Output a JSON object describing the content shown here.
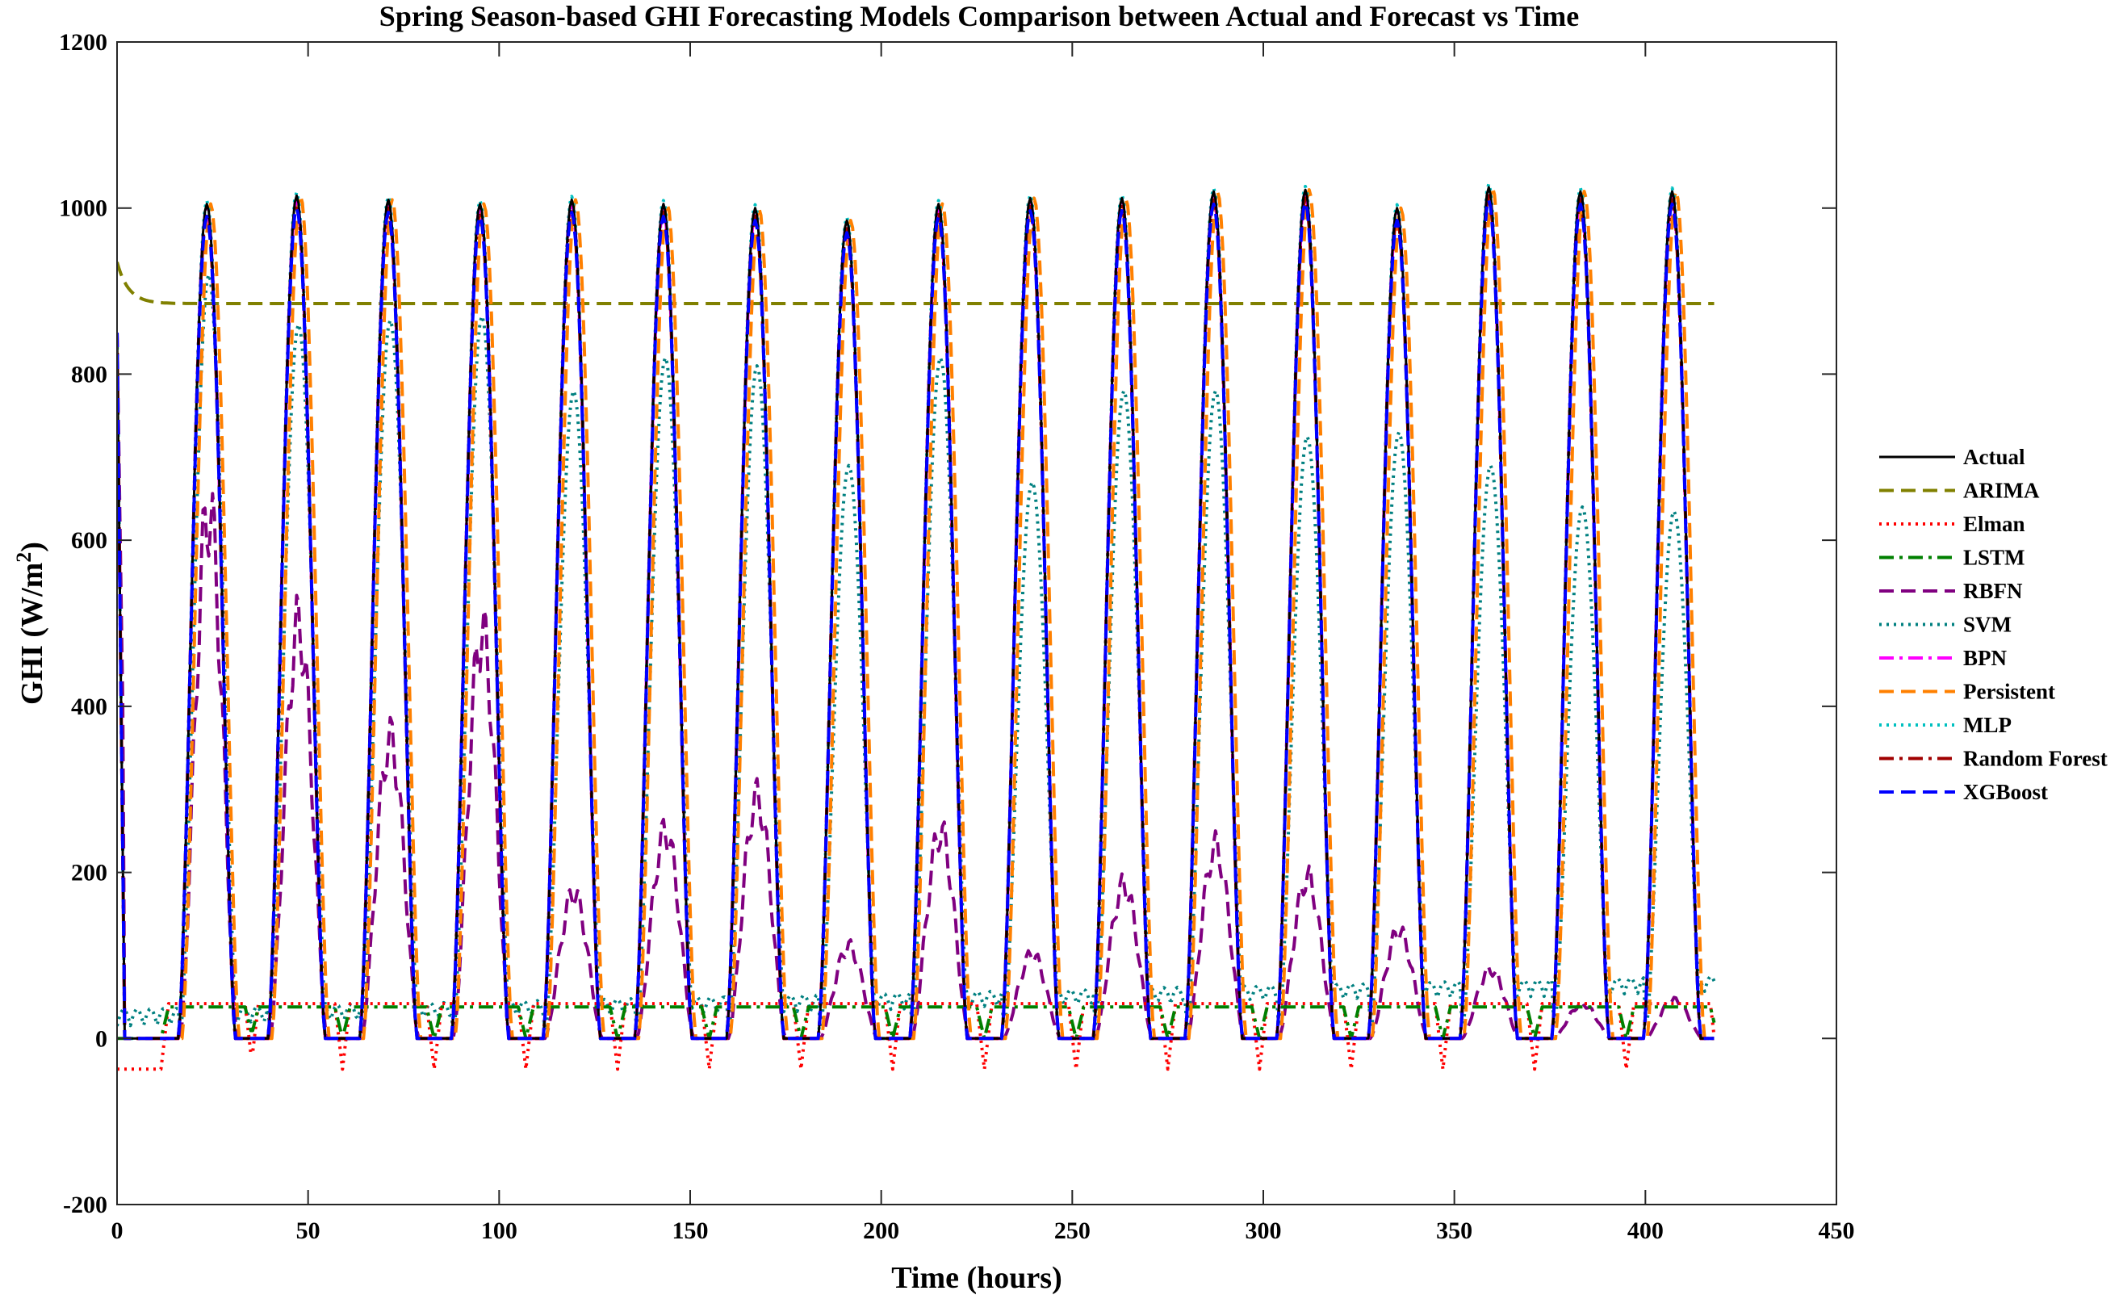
{
  "chart_data": {
    "type": "line",
    "title": "Spring Season-based GHI Forecasting Models Comparison between Actual and Forecast vs Time",
    "xlabel": "Time (hours)",
    "ylabel": "GHI (W/m²)",
    "ylabel_main": "GHI (W/m",
    "ylabel_sup": "2",
    "ylabel_close": ")",
    "xlim": [
      0,
      450
    ],
    "ylim": [
      -200,
      1200
    ],
    "xticks": [
      "0",
      "50",
      "100",
      "150",
      "200",
      "250",
      "300",
      "350",
      "400",
      "450"
    ],
    "yticks": [
      "-200",
      "0",
      "200",
      "400",
      "600",
      "800",
      "1000",
      "1200"
    ],
    "grid": false,
    "legend_position": "right",
    "x_end": 418,
    "days": [
      {
        "center": 23.5,
        "peak": 1005,
        "rbfn": 690,
        "svm": 920
      },
      {
        "center": 47,
        "peak": 1015,
        "rbfn": 540,
        "svm": 860
      },
      {
        "center": 71,
        "peak": 1010,
        "rbfn": 390,
        "svm": 865
      },
      {
        "center": 95,
        "peak": 1005,
        "rbfn": 530,
        "svm": 870
      },
      {
        "center": 119,
        "peak": 1010,
        "rbfn": 190,
        "svm": 780
      },
      {
        "center": 143,
        "peak": 1005,
        "rbfn": 270,
        "svm": 820
      },
      {
        "center": 167,
        "peak": 1000,
        "rbfn": 315,
        "svm": 810
      },
      {
        "center": 191,
        "peak": 985,
        "rbfn": 120,
        "svm": 690
      },
      {
        "center": 215,
        "peak": 1005,
        "rbfn": 270,
        "svm": 820
      },
      {
        "center": 239,
        "peak": 1012,
        "rbfn": 110,
        "svm": 670
      },
      {
        "center": 263,
        "peak": 1012,
        "rbfn": 200,
        "svm": 780
      },
      {
        "center": 287,
        "peak": 1020,
        "rbfn": 250,
        "svm": 780
      },
      {
        "center": 311,
        "peak": 1022,
        "rbfn": 210,
        "svm": 725
      },
      {
        "center": 335,
        "peak": 1000,
        "rbfn": 140,
        "svm": 730
      },
      {
        "center": 359,
        "peak": 1025,
        "rbfn": 90,
        "svm": 690
      },
      {
        "center": 383,
        "peak": 1020,
        "rbfn": 45,
        "svm": 640
      },
      {
        "center": 407,
        "peak": 1020,
        "rbfn": 50,
        "svm": 635
      }
    ],
    "series": [
      {
        "name": "Actual",
        "color": "#000000",
        "style": "solid"
      },
      {
        "name": "ARIMA",
        "color": "#808000",
        "style": "dashed",
        "start": 935,
        "level": 885
      },
      {
        "name": "Elman",
        "color": "#ff0000",
        "style": "dotted",
        "day_level": 42,
        "night_level": -37
      },
      {
        "name": "LSTM",
        "color": "#008000",
        "style": "dashdot",
        "day_level": 38,
        "night_level": 0
      },
      {
        "name": "RBFN",
        "color": "#800080",
        "style": "dashed"
      },
      {
        "name": "SVM",
        "color": "#008080",
        "style": "dotted"
      },
      {
        "name": "BPN",
        "color": "#ff00ff",
        "style": "dashdot"
      },
      {
        "name": "Persistent",
        "color": "#ff8000",
        "style": "dashed"
      },
      {
        "name": "MLP",
        "color": "#00c0c0",
        "style": "dotted"
      },
      {
        "name": "Random Forest",
        "color": "#a00000",
        "style": "dashdot"
      },
      {
        "name": "XGBoost",
        "color": "#0000ff",
        "style": "dashed"
      }
    ]
  }
}
